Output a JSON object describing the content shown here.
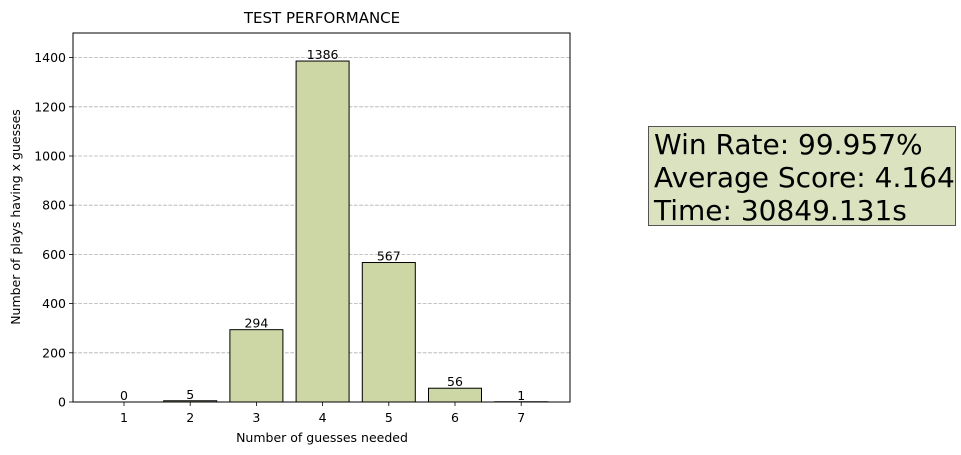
{
  "chart_data": {
    "type": "bar",
    "title": "TEST PERFORMANCE",
    "xlabel": "Number of guesses needed",
    "ylabel": "Number of plays having x guesses",
    "categories": [
      "1",
      "2",
      "3",
      "4",
      "5",
      "6",
      "7"
    ],
    "values": [
      0,
      5,
      294,
      1386,
      567,
      56,
      1
    ],
    "ylim": [
      0,
      1500
    ],
    "yticks": [
      0,
      200,
      400,
      600,
      800,
      1000,
      1200,
      1400
    ],
    "grid": "y-dashed",
    "bar_color": "#cdd7a6",
    "bar_edge_color": "#000000"
  },
  "stats": {
    "win_rate": "Win Rate: 99.957%",
    "average_score": "Average Score: 4.164",
    "time": "Time: 30849.131s",
    "box_color": "#dbe2c0"
  }
}
